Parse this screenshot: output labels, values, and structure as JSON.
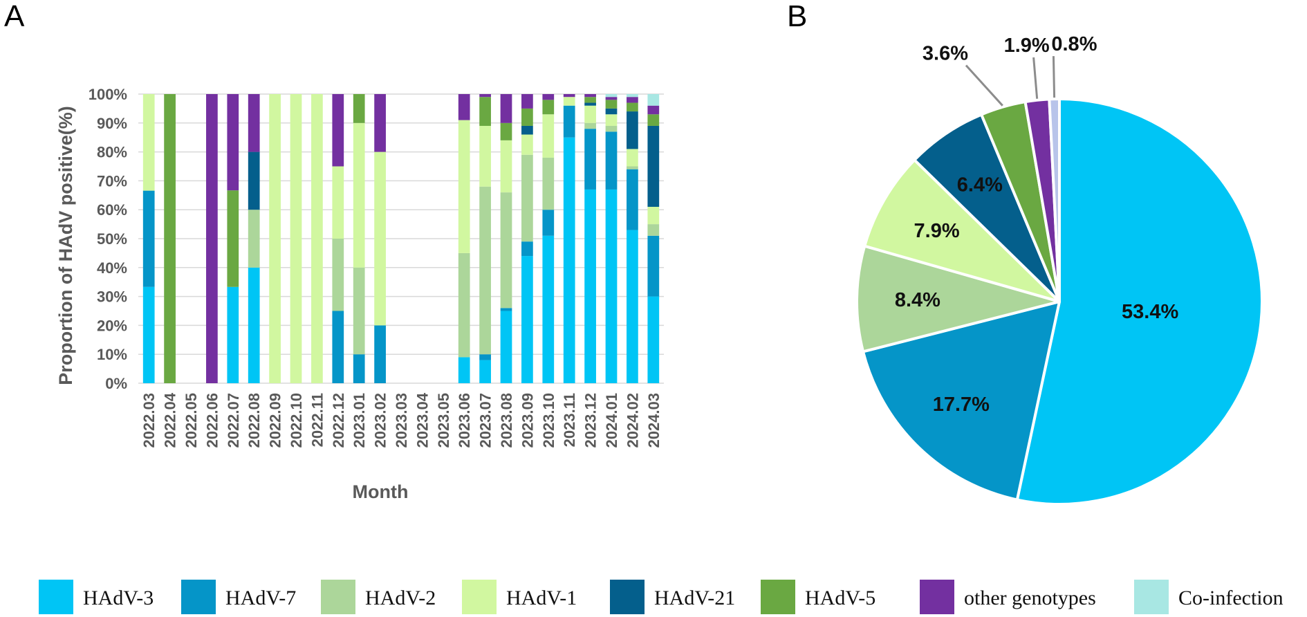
{
  "panels": {
    "a": "A",
    "b": "B"
  },
  "legend": [
    {
      "name": "HAdV-3",
      "color": "#00c5f5"
    },
    {
      "name": "HAdV-7",
      "color": "#0595c8"
    },
    {
      "name": "HAdV-2",
      "color": "#acd69a"
    },
    {
      "name": "HAdV-1",
      "color": "#d1f7a0"
    },
    {
      "name": "HAdV-21",
      "color": "#045f8c"
    },
    {
      "name": "HAdV-5",
      "color": "#6aa842"
    },
    {
      "name": "other genotypes",
      "color": "#7330a0"
    },
    {
      "name": "Co-infection",
      "color": "#a8e7e3"
    }
  ],
  "chart_data": [
    {
      "type": "bar",
      "stacked": true,
      "title": "",
      "xlabel": "Month",
      "ylabel": "Proportion of HAdV positive(%)",
      "ylim": [
        0,
        100
      ],
      "yticks": [
        "0%",
        "10%",
        "20%",
        "30%",
        "40%",
        "50%",
        "60%",
        "70%",
        "80%",
        "90%",
        "100%"
      ],
      "categories": [
        "2022.03",
        "2022.04",
        "2022.05",
        "2022.06",
        "2022.07",
        "2022.08",
        "2022.09",
        "2022.10",
        "2022.11",
        "2022.12",
        "2023.01",
        "2023.02",
        "2023.03",
        "2023.04",
        "2023.05",
        "2023.06",
        "2023.07",
        "2023.08",
        "2023.09",
        "2023.10",
        "2023.11",
        "2023.12",
        "2024.01",
        "2024.02",
        "2024.03"
      ],
      "series": [
        {
          "name": "HAdV-3",
          "color": "#00c5f5",
          "values": [
            33.3,
            0,
            0,
            0,
            33.3,
            40,
            0,
            0,
            0,
            0,
            0,
            0,
            0,
            0,
            0,
            9,
            8,
            25,
            44,
            51,
            85,
            67,
            67,
            53,
            30
          ]
        },
        {
          "name": "HAdV-7",
          "color": "#0595c8",
          "values": [
            33.3,
            0,
            0,
            0,
            0,
            0,
            0,
            0,
            0,
            25,
            10,
            20,
            0,
            0,
            0,
            0,
            2,
            1,
            5,
            9,
            11,
            21,
            20,
            21,
            21
          ]
        },
        {
          "name": "HAdV-2",
          "color": "#acd69a",
          "values": [
            0,
            0,
            0,
            0,
            0,
            20,
            0,
            0,
            0,
            25,
            30,
            0,
            0,
            0,
            0,
            36,
            58,
            40,
            30,
            18,
            0,
            2,
            2,
            1,
            4
          ]
        },
        {
          "name": "HAdV-1",
          "color": "#d1f7a0",
          "values": [
            33.4,
            0,
            0,
            0,
            0,
            0,
            100,
            100,
            100,
            25,
            50,
            60,
            0,
            0,
            0,
            46,
            21,
            18,
            7,
            15,
            3,
            6,
            4,
            6,
            6
          ]
        },
        {
          "name": "HAdV-21",
          "color": "#045f8c",
          "values": [
            0,
            0,
            0,
            0,
            0,
            20,
            0,
            0,
            0,
            0,
            0,
            0,
            0,
            0,
            0,
            0,
            0,
            0,
            3,
            0,
            0,
            1,
            2,
            13,
            28
          ]
        },
        {
          "name": "HAdV-5",
          "color": "#6aa842",
          "values": [
            0,
            100,
            0,
            0,
            33.4,
            0,
            0,
            0,
            0,
            0,
            10,
            0,
            0,
            0,
            0,
            0,
            10,
            6,
            6,
            5,
            0,
            2,
            3,
            3,
            4
          ]
        },
        {
          "name": "other genotypes",
          "color": "#7330a0",
          "values": [
            0,
            0,
            0,
            100,
            33.3,
            20,
            0,
            0,
            0,
            25,
            0,
            20,
            0,
            0,
            0,
            9,
            1,
            10,
            5,
            2,
            1,
            1,
            1,
            2,
            3
          ]
        },
        {
          "name": "Co-infection",
          "color": "#a8e7e3",
          "values": [
            0,
            0,
            0,
            0,
            0,
            0,
            0,
            0,
            0,
            0,
            0,
            0,
            0,
            0,
            0,
            0,
            0,
            0,
            0,
            0,
            0,
            0,
            1,
            1,
            4
          ]
        }
      ]
    },
    {
      "type": "pie",
      "title": "",
      "slices": [
        {
          "name": "HAdV-3",
          "value": 53.4,
          "label": "53.4%",
          "color": "#00c5f5"
        },
        {
          "name": "HAdV-7",
          "value": 17.7,
          "label": "17.7%",
          "color": "#0595c8"
        },
        {
          "name": "HAdV-2",
          "value": 8.4,
          "label": "8.4%",
          "color": "#acd69a"
        },
        {
          "name": "HAdV-1",
          "value": 7.9,
          "label": "7.9%",
          "color": "#d1f7a0"
        },
        {
          "name": "HAdV-21",
          "value": 6.4,
          "label": "6.4%",
          "color": "#045f8c"
        },
        {
          "name": "HAdV-5",
          "value": 3.6,
          "label": "3.6%",
          "color": "#6aa842"
        },
        {
          "name": "other genotypes",
          "value": 1.9,
          "label": "1.9%",
          "color": "#7330a0"
        },
        {
          "name": "Co-infection",
          "value": 0.8,
          "label": "0.8%",
          "color": "#b8c4ea"
        }
      ]
    }
  ]
}
